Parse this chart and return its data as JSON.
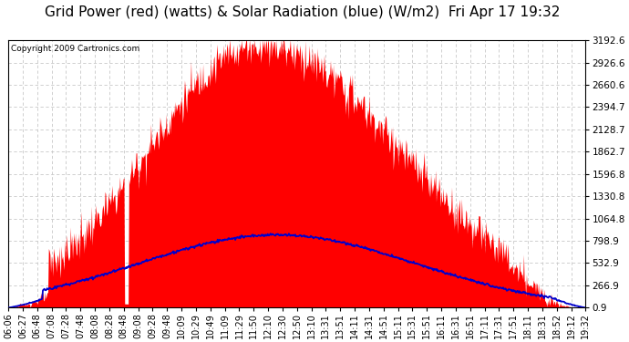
{
  "title": "Grid Power (red) (watts) & Solar Radiation (blue) (W/m2)  Fri Apr 17 19:32",
  "copyright": "Copyright 2009 Cartronics.com",
  "yticks": [
    0.9,
    266.9,
    532.9,
    798.9,
    1064.8,
    1330.8,
    1596.8,
    1862.7,
    2128.7,
    2394.7,
    2660.6,
    2926.6,
    3192.6
  ],
  "ymin": 0.9,
  "ymax": 3192.6,
  "xtick_labels": [
    "06:06",
    "06:27",
    "06:48",
    "07:08",
    "07:28",
    "07:48",
    "08:08",
    "08:28",
    "08:48",
    "09:08",
    "09:28",
    "09:48",
    "10:09",
    "10:29",
    "10:49",
    "11:09",
    "11:29",
    "11:50",
    "12:10",
    "12:30",
    "12:50",
    "13:10",
    "13:31",
    "13:51",
    "14:11",
    "14:31",
    "14:51",
    "15:11",
    "15:31",
    "15:51",
    "16:11",
    "16:31",
    "16:51",
    "17:11",
    "17:31",
    "17:51",
    "18:11",
    "18:31",
    "18:52",
    "19:12",
    "19:32"
  ],
  "background_color": "#ffffff",
  "plot_bg": "#ffffff",
  "grid_color": "#c8c8c8",
  "red_color": "#ff0000",
  "blue_color": "#0000cc",
  "title_fontsize": 11,
  "tick_fontsize": 7
}
